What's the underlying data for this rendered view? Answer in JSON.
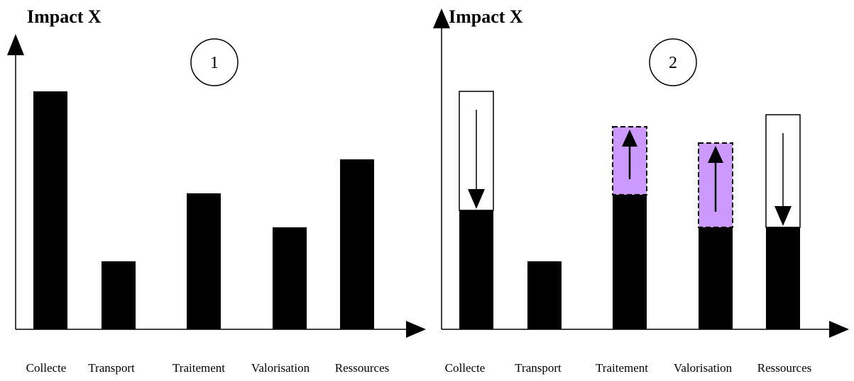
{
  "chart_data": [
    {
      "type": "bar",
      "title": "Impact X",
      "badge": "1",
      "categories": [
        "Collecte",
        "Transport",
        "Traitement",
        "Valorisation",
        "Ressources"
      ],
      "values": [
        336,
        96,
        192,
        144,
        240
      ],
      "ylim": [
        0,
        400
      ]
    },
    {
      "type": "bar",
      "title": "Impact X",
      "badge": "2",
      "categories": [
        "Collecte",
        "Transport",
        "Traitement",
        "Valorisation",
        "Ressources"
      ],
      "values": [
        168,
        96,
        190,
        144,
        144
      ],
      "previous_values": [
        336,
        null,
        null,
        null,
        303
      ],
      "increase_values": [
        null,
        null,
        286,
        263,
        null
      ],
      "ylim": [
        0,
        400
      ],
      "colors": {
        "bar": "#000000",
        "increase": "#cc99ff",
        "outline": "#000000"
      }
    }
  ]
}
